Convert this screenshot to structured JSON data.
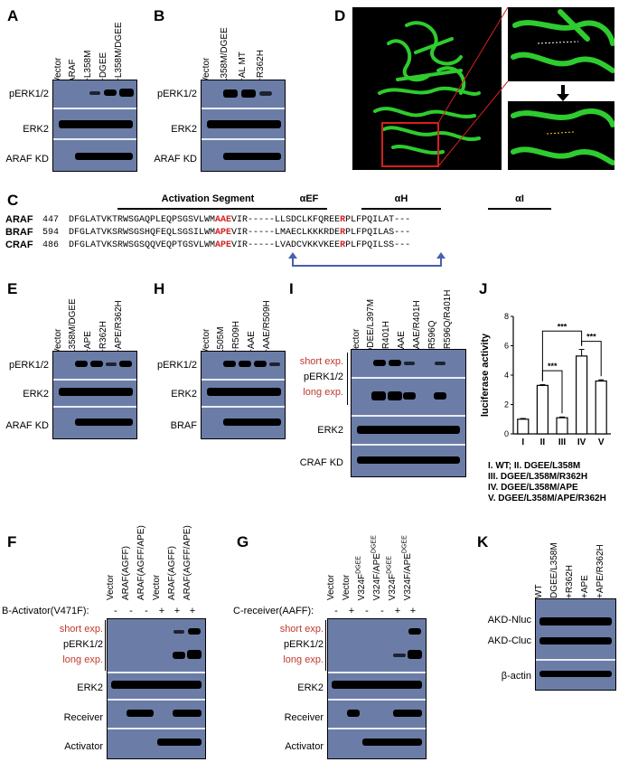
{
  "panels": {
    "A": {
      "label": "A",
      "lanes": [
        "Vector",
        "ARAF",
        "+L358M",
        "+DGEE",
        "+L358M/DGEE"
      ],
      "rows": [
        "pERK1/2",
        "ERK2",
        "ARAF KD"
      ]
    },
    "B": {
      "label": "B",
      "lanes": [
        "Vector",
        "L358M/DGEE",
        "+AL MT",
        "+R362H"
      ],
      "rows": [
        "pERK1/2",
        "ERK2",
        "ARAF KD"
      ]
    },
    "C": {
      "label": "C",
      "segments": [
        "Activation Segment",
        "αEF",
        "αH",
        "αI"
      ],
      "sequences": [
        {
          "name": "ARAF",
          "pos": "447",
          "pre": "DFGLATVKTRWSGAQPLEQPSGSVLWM",
          "red1": "AAE",
          "mid": "VIR-----LLSDCLKFQREE",
          "red2": "R",
          "post": "PLFPQILAT---"
        },
        {
          "name": "BRAF",
          "pos": "594",
          "pre": "DFGLATVKSRWSGSHQFEQLSGSILWM",
          "red1": "APE",
          "mid": "VIR-----LMAECLKKKRDE",
          "red2": "R",
          "post": "PLFPQILAS---"
        },
        {
          "name": "CRAF",
          "pos": "486",
          "pre": "DFGLATVKSRWSGSQQVEQPTGSVLWM",
          "red1": "APE",
          "mid": "VIR-----LVADCVKKVKEE",
          "red2": "R",
          "post": "PLFPQILSS---"
        }
      ]
    },
    "D": {
      "label": "D"
    },
    "E": {
      "label": "E",
      "lanes": [
        "Vector",
        "L358M/DGEE",
        "+APE",
        "+R362H",
        "+APE/R362H"
      ],
      "rows": [
        "pERK1/2",
        "ERK2",
        "ARAF KD"
      ]
    },
    "F": {
      "label": "F",
      "lanes": [
        "Vector",
        "ARAF(AGFF)",
        "ARAF(AGFF/APE)",
        "Vector",
        "ARAF(AGFF)",
        "ARAF(AGFF/APE)"
      ],
      "activator_label": "B-Activator(V471F):",
      "signs": [
        "-",
        "-",
        "-",
        "+",
        "+",
        "+"
      ],
      "short_exp": "short exp.",
      "perk": "pERK1/2",
      "long_exp": "long exp.",
      "rows": [
        "ERK2",
        "Receiver",
        "Activator"
      ]
    },
    "G": {
      "label": "G",
      "lanes": [
        "Vector",
        "Vector",
        "V324F",
        "V324F/APE",
        "V324F",
        "V324F/APE"
      ],
      "lane_sups": [
        "",
        "",
        "DGEE",
        "DGEE",
        "DGEE",
        "DGEE"
      ],
      "receiver_label": "C-receiver(AAFF):",
      "signs": [
        "-",
        "+",
        "-",
        "-",
        "+",
        "+"
      ],
      "short_exp": "short exp.",
      "perk": "pERK1/2",
      "long_exp": "long exp.",
      "rows": [
        "ERK2",
        "Receiver",
        "Activator"
      ]
    },
    "H": {
      "label": "H",
      "lanes": [
        "Vector",
        "L505M",
        "+R509H",
        "+AAE",
        "+AAE/R509H"
      ],
      "rows": [
        "pERK1/2",
        "ERK2",
        "BRAF"
      ]
    },
    "I": {
      "label": "I",
      "lanes": [
        "Vector",
        "DDEE/L397M",
        "+R401H",
        "+AAE",
        "+AAE/R401H",
        "+R596Q",
        "+R596Q/R401H"
      ],
      "short_exp": "short exp.",
      "perk": "pERK1/2",
      "long_exp": "long exp.",
      "rows": [
        "ERK2",
        "CRAF KD"
      ]
    },
    "J": {
      "label": "J",
      "legend": [
        "I. WT;  II. DGEE/L358M",
        "III. DGEE/L358M/R362H",
        "IV. DGEE/L358M/APE",
        "V. DGEE/L358M/APE/R362H"
      ]
    },
    "K": {
      "label": "K",
      "lanes": [
        "WT",
        "DGEE/L358M",
        "+R362H",
        "+APE",
        "+APE/R362H"
      ],
      "rows": [
        "AKD-Nluc",
        "AKD-Cluc",
        "β-actin"
      ]
    }
  },
  "chart_data": {
    "type": "bar",
    "categories": [
      "I",
      "II",
      "III",
      "IV",
      "V"
    ],
    "values": [
      1.0,
      3.3,
      1.1,
      5.3,
      3.6
    ],
    "errors": [
      0.05,
      0.05,
      0.05,
      0.45,
      0.08
    ],
    "ylabel": "luciferase activity",
    "ylim": [
      0,
      8
    ],
    "yticks": [
      0,
      2,
      4,
      6,
      8
    ],
    "significance": [
      {
        "from": "II",
        "to": "III",
        "label": "***"
      },
      {
        "from": "II",
        "to": "IV",
        "label": "***"
      },
      {
        "from": "IV",
        "to": "V",
        "label": "***"
      }
    ],
    "grid": false
  },
  "colors": {
    "blot": "#6b7da7",
    "accent_red": "#c0392b",
    "arrow_blue": "#4a5fb0",
    "protein_green": "#2ecc2e"
  }
}
